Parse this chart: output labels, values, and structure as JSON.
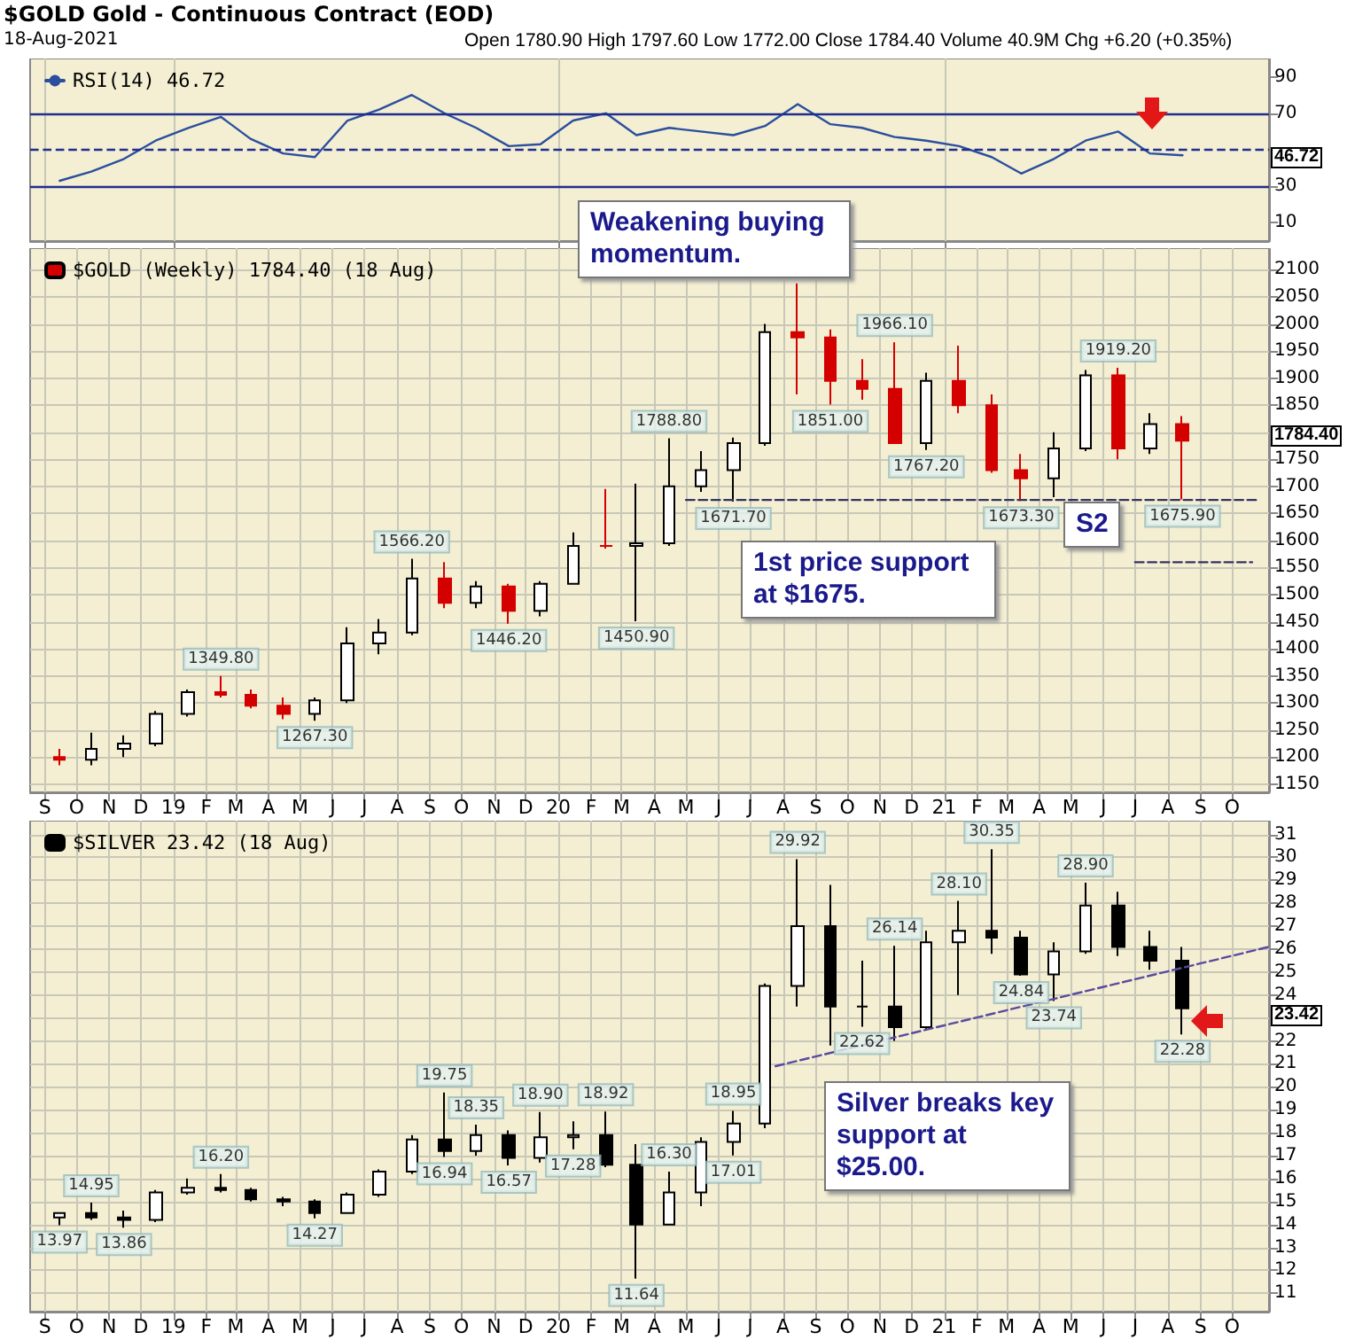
{
  "chart_data": [
    {
      "type": "line",
      "title": "$GOLD Gold - Continuous Contract (EOD)",
      "subtitle": "18-Aug-2021",
      "annotations": [
        "Open 1780.90 High 1797.60 Low 1772.00 Close 1784.40 Volume 40.9M Chg +6.20 (+0.35%)",
        "46.72"
      ],
      "series": [
        {
          "name": "RSI(14) 46.72",
          "color": "#2a4f9e",
          "x": [
            "2018-09-15",
            "2018-10-15",
            "2018-11-15",
            "2018-12-15",
            "2019-01-15",
            "2019-02-15",
            "2019-03-15",
            "2019-04-15",
            "2019-05-15",
            "2019-06-15",
            "2019-07-15",
            "2019-08-15",
            "2019-09-15",
            "2019-10-15",
            "2019-11-15",
            "2019-12-15",
            "2020-01-15",
            "2020-02-15",
            "2020-03-15",
            "2020-04-15",
            "2020-05-15",
            "2020-06-15",
            "2020-07-15",
            "2020-08-15",
            "2020-09-15",
            "2020-10-15",
            "2020-11-15",
            "2020-12-15",
            "2021-01-15",
            "2021-02-15",
            "2021-03-15",
            "2021-04-15",
            "2021-05-15",
            "2021-06-15",
            "2021-07-15",
            "2021-08-15"
          ],
          "values": [
            33,
            38,
            45,
            55,
            62,
            68,
            56,
            48,
            46,
            66,
            72,
            80,
            70,
            62,
            52,
            53,
            66,
            70,
            58,
            62,
            60,
            58,
            63,
            75,
            64,
            62,
            57,
            55,
            52,
            46,
            37,
            45,
            55,
            60,
            48,
            47
          ]
        }
      ],
      "ref_lines": [
        {
          "axis": "y",
          "value": 70,
          "color": "#1f2f8f",
          "line_style": "solid"
        },
        {
          "axis": "y",
          "value": 30,
          "color": "#1f2f8f",
          "line_style": "solid"
        },
        {
          "axis": "y",
          "value": 50,
          "color": "#1f2f8f",
          "line_style": "dashed"
        }
      ],
      "xlim": [
        "2018-08-18",
        "2021-11-05"
      ],
      "ylim": [
        0,
        100
      ],
      "yticks": [
        10,
        30,
        {
          "value": 50,
          "label": null
        },
        70,
        90
      ],
      "xticks": [
        {
          "value": "2018-09-01",
          "label": null
        },
        {
          "value": "2019-01-01",
          "label": null
        },
        {
          "value": "2020-01-01",
          "label": null
        },
        {
          "value": "2021-01-01",
          "label": null
        }
      ],
      "tick_labels": "y",
      "grid": "x",
      "legend": "top left",
      "marker": "none",
      "line_style": "solid"
    },
    {
      "type": "candlestick",
      "annotations": [
        "Weakening buying momentum.",
        "1st price support at $1675.",
        "S2",
        {
          "text": "1349.80",
          "x": "2019-02-15",
          "y": 1349.8
        },
        {
          "text": "1267.30",
          "x": "2019-05-15",
          "y": 1267.3
        },
        {
          "text": "1566.20",
          "x": "2019-08-15",
          "y": 1566.2
        },
        {
          "text": "1446.20",
          "x": "2019-11-15",
          "y": 1446.2
        },
        {
          "text": "1450.90",
          "x": "2020-03-15",
          "y": 1450.9
        },
        {
          "text": "1788.80",
          "x": "2020-04-15",
          "y": 1788.8
        },
        {
          "text": "1671.70",
          "x": "2020-06-15",
          "y": 1671.7
        },
        {
          "text": "1851.00",
          "x": "2020-09-15",
          "y": 1851
        },
        {
          "text": "1966.10",
          "x": "2020-11-15",
          "y": 1966.1
        },
        {
          "text": "1767.20",
          "x": "2020-12-15",
          "y": 1767.2
        },
        {
          "text": "1673.30",
          "x": "2021-03-15",
          "y": 1673.3
        },
        {
          "text": "1919.20",
          "x": "2021-06-15",
          "y": 1919.2
        },
        {
          "text": "1675.90",
          "x": "2021-08-15",
          "y": 1675.9
        },
        "1784.40"
      ],
      "series": [
        {
          "name": "$GOLD (Weekly) 1784.40 (18 Aug)",
          "x": [
            "2018-09-15",
            "2018-10-15",
            "2018-11-15",
            "2018-12-15",
            "2019-01-15",
            "2019-02-15",
            "2019-03-15",
            "2019-04-15",
            "2019-05-15",
            "2019-06-15",
            "2019-07-15",
            "2019-08-15",
            "2019-09-15",
            "2019-10-15",
            "2019-11-15",
            "2019-12-15",
            "2020-01-15",
            "2020-02-15",
            "2020-03-15",
            "2020-04-15",
            "2020-05-15",
            "2020-06-15",
            "2020-07-15",
            "2020-08-15",
            "2020-09-15",
            "2020-10-15",
            "2020-11-15",
            "2020-12-15",
            "2021-01-15",
            "2021-02-15",
            "2021-03-15",
            "2021-04-15",
            "2021-05-15",
            "2021-06-15",
            "2021-07-15",
            "2021-08-15"
          ],
          "ohlc": [
            [
              1200,
              1215,
              1185,
              1195
            ],
            [
              1195,
              1245,
              1185,
              1215
            ],
            [
              1215,
              1240,
              1200,
              1225
            ],
            [
              1225,
              1285,
              1220,
              1280
            ],
            [
              1280,
              1325,
              1275,
              1320
            ],
            [
              1320,
              1349.8,
              1310,
              1315
            ],
            [
              1315,
              1325,
              1290,
              1295
            ],
            [
              1295,
              1310,
              1270,
              1280
            ],
            [
              1280,
              1310,
              1267.3,
              1305
            ],
            [
              1305,
              1440,
              1300,
              1410
            ],
            [
              1410,
              1455,
              1390,
              1430
            ],
            [
              1430,
              1566.2,
              1425,
              1530
            ],
            [
              1530,
              1560,
              1475,
              1485
            ],
            [
              1485,
              1525,
              1475,
              1515
            ],
            [
              1515,
              1520,
              1446.2,
              1470
            ],
            [
              1470,
              1525,
              1460,
              1520
            ],
            [
              1520,
              1615,
              1520,
              1590
            ],
            [
              1590,
              1695,
              1585,
              1590
            ],
            [
              1590,
              1705,
              1450.9,
              1595
            ],
            [
              1595,
              1788.8,
              1590,
              1700
            ],
            [
              1700,
              1765,
              1690,
              1730
            ],
            [
              1730,
              1790,
              1671.7,
              1780
            ],
            [
              1780,
              2000,
              1775,
              1985
            ],
            [
              1985,
              2075,
              1870,
              1975
            ],
            [
              1975,
              1990,
              1851,
              1895
            ],
            [
              1895,
              1935,
              1860,
              1880
            ],
            [
              1880,
              1966.1,
              1780,
              1780
            ],
            [
              1780,
              1910,
              1767.2,
              1895
            ],
            [
              1895,
              1960,
              1835,
              1850
            ],
            [
              1850,
              1870,
              1725,
              1730
            ],
            [
              1730,
              1760,
              1673.3,
              1715
            ],
            [
              1715,
              1800,
              1680,
              1770
            ],
            [
              1770,
              1915,
              1765,
              1905
            ],
            [
              1905,
              1919.2,
              1750,
              1770
            ],
            [
              1770,
              1835,
              1760,
              1815
            ],
            [
              1815,
              1830,
              1675.9,
              1784.4
            ]
          ],
          "colors": [
            "#d40000",
            "#ffffff",
            "#ffffff",
            "#ffffff",
            "#ffffff",
            "#d40000",
            "#d40000",
            "#d40000",
            "#ffffff",
            "#ffffff",
            "#ffffff",
            "#ffffff",
            "#d40000",
            "#ffffff",
            "#d40000",
            "#ffffff",
            "#ffffff",
            "#d40000",
            "#ffffff",
            "#ffffff",
            "#ffffff",
            "#ffffff",
            "#ffffff",
            "#d40000",
            "#d40000",
            "#d40000",
            "#d40000",
            "#ffffff",
            "#d40000",
            "#d40000",
            "#d40000",
            "#ffffff",
            "#ffffff",
            "#d40000",
            "#ffffff",
            "#d40000"
          ]
        },
        {
          "type": "line",
          "color": "#333366",
          "line_style": "dashed",
          "x": [
            "2020-05-01",
            "2021-10-25"
          ],
          "values": [
            1675,
            1675
          ]
        },
        {
          "type": "line",
          "color": "#333366",
          "line_style": "dashed",
          "x": [
            "2021-07-01",
            "2021-10-20"
          ],
          "values": [
            1560,
            1560
          ]
        }
      ],
      "xlim": [
        "2018-08-18",
        "2021-11-05"
      ],
      "ylim": [
        1135,
        2140
      ],
      "yticks": [
        1150,
        1200,
        1250,
        1300,
        1350,
        1400,
        1450,
        1500,
        1550,
        1600,
        1650,
        1700,
        1750,
        {
          "value": 1800,
          "label": null
        },
        1850,
        1900,
        1950,
        2000,
        2050,
        2100
      ],
      "xticks": [
        {
          "value": "2018-09-01",
          "label": "S"
        },
        {
          "value": "2018-10-01",
          "label": "O"
        },
        {
          "value": "2018-11-01",
          "label": "N"
        },
        {
          "value": "2018-12-01",
          "label": "D"
        },
        {
          "value": "2019-01-01",
          "label": "19"
        },
        {
          "value": "2019-02-01",
          "label": "F"
        },
        {
          "value": "2019-03-01",
          "label": "M"
        },
        {
          "value": "2019-04-01",
          "label": "A"
        },
        {
          "value": "2019-05-01",
          "label": "M"
        },
        {
          "value": "2019-06-01",
          "label": "J"
        },
        {
          "value": "2019-07-01",
          "label": "J"
        },
        {
          "value": "2019-08-01",
          "label": "A"
        },
        {
          "value": "2019-09-01",
          "label": "S"
        },
        {
          "value": "2019-10-01",
          "label": "O"
        },
        {
          "value": "2019-11-01",
          "label": "N"
        },
        {
          "value": "2019-12-01",
          "label": "D"
        },
        {
          "value": "2020-01-01",
          "label": "20"
        },
        {
          "value": "2020-02-01",
          "label": "F"
        },
        {
          "value": "2020-03-01",
          "label": "M"
        },
        {
          "value": "2020-04-01",
          "label": "A"
        },
        {
          "value": "2020-05-01",
          "label": "M"
        },
        {
          "value": "2020-06-01",
          "label": "J"
        },
        {
          "value": "2020-07-01",
          "label": "J"
        },
        {
          "value": "2020-08-01",
          "label": "A"
        },
        {
          "value": "2020-09-01",
          "label": "S"
        },
        {
          "value": "2020-10-01",
          "label": "O"
        },
        {
          "value": "2020-11-01",
          "label": "N"
        },
        {
          "value": "2020-12-01",
          "label": "D"
        },
        {
          "value": "2021-01-01",
          "label": "21"
        },
        {
          "value": "2021-02-01",
          "label": "F"
        },
        {
          "value": "2021-03-01",
          "label": "M"
        },
        {
          "value": "2021-04-01",
          "label": "A"
        },
        {
          "value": "2021-05-01",
          "label": "M"
        },
        {
          "value": "2021-06-01",
          "label": "J"
        },
        {
          "value": "2021-07-01",
          "label": "J"
        },
        {
          "value": "2021-08-01",
          "label": "A"
        },
        {
          "value": "2021-09-01",
          "label": "S"
        },
        {
          "value": "2021-10-01",
          "label": "O"
        }
      ],
      "grid": true,
      "legend": "top left"
    },
    {
      "type": "candlestick",
      "annotations": [
        "Silver breaks key support at $25.00.",
        {
          "text": "13.97",
          "x": "2018-09-15",
          "y": 13.97
        },
        {
          "text": "14.95",
          "x": "2018-10-15",
          "y": 14.95
        },
        {
          "text": "13.86",
          "x": "2018-11-15",
          "y": 13.86
        },
        {
          "text": "16.20",
          "x": "2019-02-15",
          "y": 16.2
        },
        {
          "text": "14.27",
          "x": "2019-05-15",
          "y": 14.27
        },
        {
          "text": "19.75",
          "x": "2019-09-15",
          "y": 19.75
        },
        {
          "text": "16.94",
          "x": "2019-09-15",
          "y": 16.94
        },
        {
          "text": "18.35",
          "x": "2019-10-15",
          "y": 18.35
        },
        {
          "text": "16.57",
          "x": "2019-11-15",
          "y": 16.57
        },
        {
          "text": "18.90",
          "x": "2019-12-15",
          "y": 18.9
        },
        {
          "text": "17.28",
          "x": "2020-01-15",
          "y": 17.28
        },
        {
          "text": "18.92",
          "x": "2020-02-15",
          "y": 18.92
        },
        {
          "text": "11.64",
          "x": "2020-03-15",
          "y": 11.64
        },
        {
          "text": "16.30",
          "x": "2020-04-15",
          "y": 16.3
        },
        {
          "text": "18.95",
          "x": "2020-06-15",
          "y": 18.95
        },
        {
          "text": "17.01",
          "x": "2020-06-15",
          "y": 17.01
        },
        {
          "text": "29.92",
          "x": "2020-08-15",
          "y": 29.92
        },
        {
          "text": "22.62",
          "x": "2020-10-15",
          "y": 22.62
        },
        {
          "text": "26.14",
          "x": "2020-11-15",
          "y": 26.14
        },
        {
          "text": "28.10",
          "x": "2021-01-15",
          "y": 28.1
        },
        {
          "text": "30.35",
          "x": "2021-02-15",
          "y": 30.35
        },
        {
          "text": "24.84",
          "x": "2021-03-15",
          "y": 24.84
        },
        {
          "text": "23.74",
          "x": "2021-04-15",
          "y": 23.74
        },
        {
          "text": "28.90",
          "x": "2021-05-15",
          "y": 28.9
        },
        {
          "text": "22.28",
          "x": "2021-08-15",
          "y": 22.28
        },
        "23.42"
      ],
      "series": [
        {
          "name": "$SILVER 23.42 (18 Aug)",
          "x": [
            "2018-09-15",
            "2018-10-15",
            "2018-11-15",
            "2018-12-15",
            "2019-01-15",
            "2019-02-15",
            "2019-03-15",
            "2019-04-15",
            "2019-05-15",
            "2019-06-15",
            "2019-07-15",
            "2019-08-15",
            "2019-09-15",
            "2019-10-15",
            "2019-11-15",
            "2019-12-15",
            "2020-01-15",
            "2020-02-15",
            "2020-03-15",
            "2020-04-15",
            "2020-05-15",
            "2020-06-15",
            "2020-07-15",
            "2020-08-15",
            "2020-09-15",
            "2020-10-15",
            "2020-11-15",
            "2020-12-15",
            "2021-01-15",
            "2021-02-15",
            "2021-03-15",
            "2021-04-15",
            "2021-05-15",
            "2021-06-15",
            "2021-07-15",
            "2021-08-15"
          ],
          "ohlc": [
            [
              14.3,
              14.5,
              13.97,
              14.5
            ],
            [
              14.5,
              14.95,
              14.2,
              14.3
            ],
            [
              14.3,
              14.6,
              13.86,
              14.2
            ],
            [
              14.2,
              15.5,
              14.1,
              15.4
            ],
            [
              15.4,
              16,
              15.3,
              15.6
            ],
            [
              15.6,
              16.2,
              15.4,
              15.5
            ],
            [
              15.5,
              15.6,
              15,
              15.1
            ],
            [
              15.1,
              15.2,
              14.8,
              15
            ],
            [
              15,
              15.1,
              14.27,
              14.5
            ],
            [
              14.5,
              15.4,
              14.5,
              15.3
            ],
            [
              15.3,
              16.4,
              15.2,
              16.3
            ],
            [
              16.3,
              17.9,
              16.2,
              17.7
            ],
            [
              17.7,
              19.75,
              16.94,
              17.2
            ],
            [
              17.2,
              18.35,
              17,
              17.9
            ],
            [
              17.9,
              18.1,
              16.57,
              16.9
            ],
            [
              16.9,
              18.9,
              16.7,
              17.8
            ],
            [
              17.8,
              18.5,
              17.28,
              17.9
            ],
            [
              17.9,
              18.92,
              16.5,
              16.6
            ],
            [
              16.6,
              17.5,
              11.64,
              14
            ],
            [
              14,
              16.3,
              14,
              15.4
            ],
            [
              15.4,
              17.8,
              14.8,
              17.6
            ],
            [
              17.6,
              18.95,
              17.01,
              18.4
            ],
            [
              18.4,
              24.5,
              18.2,
              24.4
            ],
            [
              24.4,
              29.92,
              23.5,
              27
            ],
            [
              27,
              28.8,
              21.8,
              23.5
            ],
            [
              23.5,
              25.5,
              22.62,
              23.5
            ],
            [
              23.5,
              26.14,
              22,
              22.6
            ],
            [
              22.6,
              26.8,
              22.5,
              26.3
            ],
            [
              26.3,
              28.1,
              24,
              26.8
            ],
            [
              26.8,
              30.35,
              25.8,
              26.5
            ],
            [
              26.5,
              26.8,
              24.84,
              24.9
            ],
            [
              24.9,
              26.3,
              23.74,
              25.9
            ],
            [
              25.9,
              28.9,
              25.8,
              27.9
            ],
            [
              27.9,
              28.5,
              25.7,
              26.1
            ],
            [
              26.1,
              26.8,
              25.1,
              25.5
            ],
            [
              25.5,
              26.1,
              22.28,
              23.42
            ]
          ],
          "colors": [
            "#ffffff",
            "#000000",
            "#000000",
            "#ffffff",
            "#ffffff",
            "#000000",
            "#000000",
            "#000000",
            "#000000",
            "#ffffff",
            "#ffffff",
            "#ffffff",
            "#000000",
            "#ffffff",
            "#000000",
            "#ffffff",
            "#ffffff",
            "#000000",
            "#000000",
            "#ffffff",
            "#ffffff",
            "#ffffff",
            "#ffffff",
            "#ffffff",
            "#000000",
            "#000000",
            "#000000",
            "#ffffff",
            "#ffffff",
            "#000000",
            "#000000",
            "#ffffff",
            "#ffffff",
            "#000000",
            "#000000",
            "#000000"
          ]
        },
        {
          "type": "line",
          "color": "#5a4aa0",
          "line_style": "dashed",
          "x": [
            "2020-07-25",
            "2021-11-05"
          ],
          "values": [
            20.9,
            26.1
          ]
        }
      ],
      "xlim": [
        "2018-08-18",
        "2021-11-05"
      ],
      "ylim": [
        10.2,
        31.6
      ],
      "yticks": [
        11,
        12,
        13,
        14,
        15,
        16,
        17,
        18,
        19,
        20,
        21,
        22,
        {
          "value": 23,
          "label": null
        },
        24,
        25,
        26,
        27,
        28,
        29,
        30,
        31
      ],
      "xticks": [
        {
          "value": "2018-09-01",
          "label": "S"
        },
        {
          "value": "2018-10-01",
          "label": "O"
        },
        {
          "value": "2018-11-01",
          "label": "N"
        },
        {
          "value": "2018-12-01",
          "label": "D"
        },
        {
          "value": "2019-01-01",
          "label": "19"
        },
        {
          "value": "2019-02-01",
          "label": "F"
        },
        {
          "value": "2019-03-01",
          "label": "M"
        },
        {
          "value": "2019-04-01",
          "label": "A"
        },
        {
          "value": "2019-05-01",
          "label": "M"
        },
        {
          "value": "2019-06-01",
          "label": "J"
        },
        {
          "value": "2019-07-01",
          "label": "J"
        },
        {
          "value": "2019-08-01",
          "label": "A"
        },
        {
          "value": "2019-09-01",
          "label": "S"
        },
        {
          "value": "2019-10-01",
          "label": "O"
        },
        {
          "value": "2019-11-01",
          "label": "N"
        },
        {
          "value": "2019-12-01",
          "label": "D"
        },
        {
          "value": "2020-01-01",
          "label": "20"
        },
        {
          "value": "2020-02-01",
          "label": "F"
        },
        {
          "value": "2020-03-01",
          "label": "M"
        },
        {
          "value": "2020-04-01",
          "label": "A"
        },
        {
          "value": "2020-05-01",
          "label": "M"
        },
        {
          "value": "2020-06-01",
          "label": "J"
        },
        {
          "value": "2020-07-01",
          "label": "J"
        },
        {
          "value": "2020-08-01",
          "label": "A"
        },
        {
          "value": "2020-09-01",
          "label": "S"
        },
        {
          "value": "2020-10-01",
          "label": "O"
        },
        {
          "value": "2020-11-01",
          "label": "N"
        },
        {
          "value": "2020-12-01",
          "label": "D"
        },
        {
          "value": "2021-01-01",
          "label": "21"
        },
        {
          "value": "2021-02-01",
          "label": "F"
        },
        {
          "value": "2021-03-01",
          "label": "M"
        },
        {
          "value": "2021-04-01",
          "label": "A"
        },
        {
          "value": "2021-05-01",
          "label": "M"
        },
        {
          "value": "2021-06-01",
          "label": "J"
        },
        {
          "value": "2021-07-01",
          "label": "J"
        },
        {
          "value": "2021-08-01",
          "label": "A"
        },
        {
          "value": "2021-09-01",
          "label": "S"
        },
        {
          "value": "2021-10-01",
          "label": "O"
        }
      ],
      "grid": true,
      "legend": "top left"
    }
  ]
}
